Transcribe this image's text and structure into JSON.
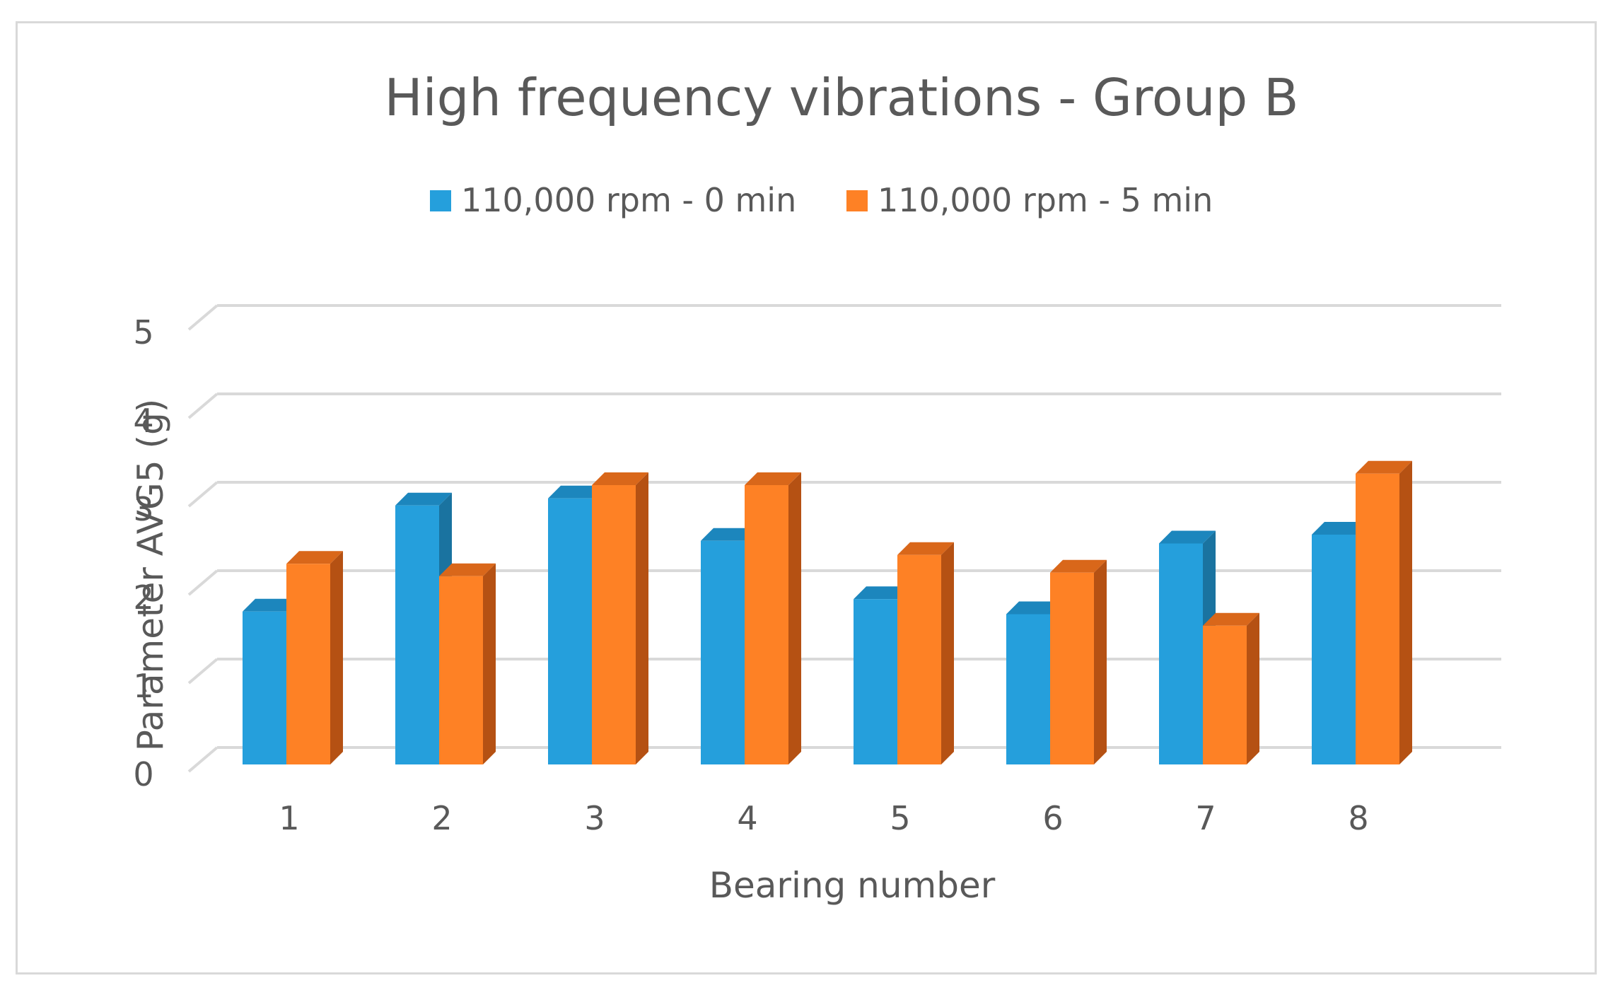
{
  "chart_data": {
    "type": "bar",
    "title": "High frequency vibrations - Group B",
    "xlabel": "Bearing number",
    "ylabel": "Parameter AVG5 (g)",
    "categories": [
      "1",
      "2",
      "3",
      "4",
      "5",
      "6",
      "7",
      "8"
    ],
    "series": [
      {
        "name": "110,000 rpm - 0 min",
        "values": [
          1.73,
          2.93,
          3.01,
          2.53,
          1.87,
          1.7,
          2.5,
          2.6
        ],
        "color": "#259fdc",
        "side_color": "#1a73a0",
        "top_color": "#1c86bd"
      },
      {
        "name": "110,000 rpm - 5 min",
        "values": [
          2.27,
          2.13,
          3.16,
          3.16,
          2.37,
          2.17,
          1.57,
          3.29
        ],
        "color": "#fe8125",
        "side_color": "#b55113",
        "top_color": "#d9671a"
      }
    ],
    "yticks": [
      "0",
      "1",
      "2",
      "3",
      "4",
      "5"
    ],
    "ylim": [
      0,
      5
    ],
    "grid": true,
    "legend_position": "top"
  }
}
